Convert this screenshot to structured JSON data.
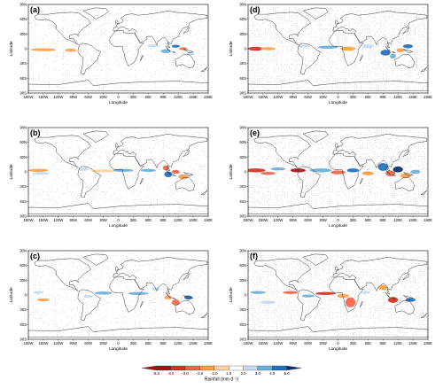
{
  "panels": [
    {
      "id": "a",
      "label": "(a)"
    },
    {
      "id": "b",
      "label": "(b)"
    },
    {
      "id": "c",
      "label": "(c)"
    },
    {
      "id": "d",
      "label": "(d)"
    },
    {
      "id": "e",
      "label": "(e)"
    },
    {
      "id": "f",
      "label": "(f)"
    }
  ],
  "axes": {
    "xlabel": "Longitude",
    "ylabel": "Latitude",
    "xticks": [
      "180W",
      "150W",
      "120W",
      "90W",
      "60W",
      "30W",
      "0",
      "30E",
      "60E",
      "90E",
      "120E",
      "150E",
      "180E"
    ],
    "yticks": [
      "90N",
      "60N",
      "30N",
      "0",
      "30S",
      "60S",
      "90S"
    ]
  },
  "colorbar": {
    "title": "Rainfall (mm d⁻¹)",
    "ticks": [
      "-5.0",
      "-4.0",
      "-3.0",
      "-2.0",
      "-1.0",
      "1.0",
      "2.0",
      "3.0",
      "4.0",
      "5.0"
    ],
    "colors": [
      "#a50f15",
      "#d7301f",
      "#ef6548",
      "#fc9f45",
      "#fdd49e",
      "#ffffff",
      "#c6dbef",
      "#6baed6",
      "#2171b5",
      "#08306b"
    ]
  }
}
